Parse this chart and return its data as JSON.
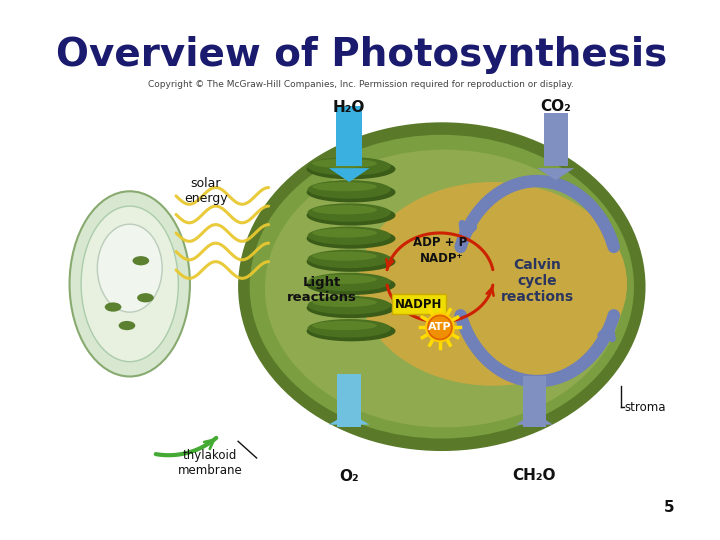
{
  "title": "Overview of Photosynthesis",
  "title_color": "#1a1a6e",
  "title_fontsize": 28,
  "copyright_text": "Copyright © The McGraw-Hill Companies, Inc. Permission required for reproduction or display.",
  "copyright_fontsize": 6.5,
  "page_number": "5",
  "bg_color": "#ffffff",
  "labels": {
    "h2o": "H₂O",
    "co2": "CO₂",
    "solar_energy": "solar\nenergy",
    "adp_p": "ADP + P",
    "nadp": "NADP⁺",
    "light_reactions": "Light\nreactions",
    "nadph": "NADPH",
    "atp": "ATP",
    "calvin_cycle": "Calvin\ncycle\nreactions",
    "stroma": "stroma",
    "thylakoid": "thylakoid\nmembrane",
    "o2": "O₂",
    "ch2o": "CH₂O"
  },
  "chloroplast_outer_color": "#5a7a2a",
  "chloroplast_mid_color": "#7a9e40",
  "chloroplast_inner_color": "#90aa50",
  "stroma_color": "#c8a840",
  "thylakoid_disk_color": "#3a5c18",
  "thylakoid_disk_hi": "#4a7020",
  "cyan_arrow_color": "#3ab0e0",
  "blue_arrow_color": "#8090c0",
  "red_arrow_color": "#cc2200",
  "green_arrow_color": "#44aa33",
  "solar_wave_color": "#e8c830",
  "nadph_bg": "#eedd00",
  "atp_burst_color": "#e06000",
  "atp_inner_color": "#f09000",
  "calvin_circle_color": "#7080b8"
}
